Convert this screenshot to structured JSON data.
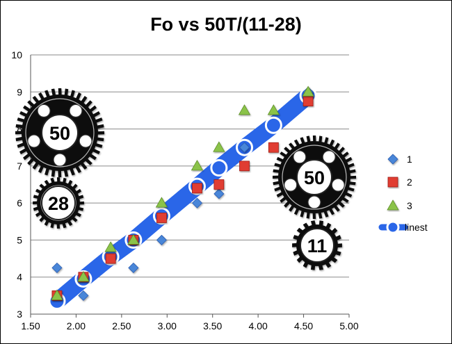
{
  "chart_data": {
    "type": "scatter",
    "title": "Fo vs 50T/(11-28)",
    "xlabel": "",
    "ylabel": "",
    "xlim": [
      1.5,
      5.0
    ],
    "ylim": [
      3,
      10
    ],
    "x_ticks": [
      "1.50",
      "2.00",
      "2.50",
      "3.00",
      "3.50",
      "4.00",
      "4.50",
      "5.00"
    ],
    "y_ticks": [
      "3",
      "4",
      "5",
      "6",
      "7",
      "8",
      "9",
      "10"
    ],
    "grid": "horizontal",
    "legend": "right",
    "series": [
      {
        "name": "1",
        "marker": "diamond",
        "color": "#4a86d8",
        "points": [
          [
            1.79,
            4.25
          ],
          [
            2.08,
            3.5
          ],
          [
            2.63,
            4.25
          ],
          [
            2.94,
            5.0
          ],
          [
            3.33,
            6.0
          ],
          [
            3.57,
            6.25
          ],
          [
            3.85,
            7.5
          ],
          [
            4.55,
            9.0
          ]
        ]
      },
      {
        "name": "2",
        "marker": "square",
        "color": "#e03c31",
        "points": [
          [
            1.79,
            3.5
          ],
          [
            2.08,
            4.0
          ],
          [
            2.38,
            4.5
          ],
          [
            2.63,
            5.0
          ],
          [
            2.94,
            5.6
          ],
          [
            3.33,
            6.4
          ],
          [
            3.57,
            6.5
          ],
          [
            3.85,
            7.0
          ],
          [
            4.17,
            7.5
          ],
          [
            4.55,
            8.75
          ]
        ]
      },
      {
        "name": "3",
        "marker": "triangle",
        "color": "#8bc34a",
        "points": [
          [
            1.79,
            3.5
          ],
          [
            2.08,
            4.0
          ],
          [
            2.38,
            4.8
          ],
          [
            2.63,
            5.0
          ],
          [
            2.94,
            6.0
          ],
          [
            3.33,
            7.0
          ],
          [
            3.57,
            7.5
          ],
          [
            3.85,
            8.5
          ],
          [
            4.17,
            8.5
          ],
          [
            4.55,
            9.0
          ]
        ]
      },
      {
        "name": "linest",
        "marker": "circle",
        "color": "#2a66e8",
        "line": true,
        "points": [
          [
            1.79,
            3.35
          ],
          [
            2.08,
            3.95
          ],
          [
            2.38,
            4.55
          ],
          [
            2.63,
            5.0
          ],
          [
            2.94,
            5.65
          ],
          [
            3.33,
            6.45
          ],
          [
            3.57,
            6.95
          ],
          [
            3.85,
            7.5
          ],
          [
            4.17,
            8.1
          ],
          [
            4.55,
            8.9
          ]
        ]
      }
    ]
  },
  "gears": [
    {
      "label": "50",
      "name": "gear-50-left-icon"
    },
    {
      "label": "28",
      "name": "gear-28-icon"
    },
    {
      "label": "50",
      "name": "gear-50-right-icon"
    },
    {
      "label": "11",
      "name": "gear-11-icon"
    }
  ]
}
